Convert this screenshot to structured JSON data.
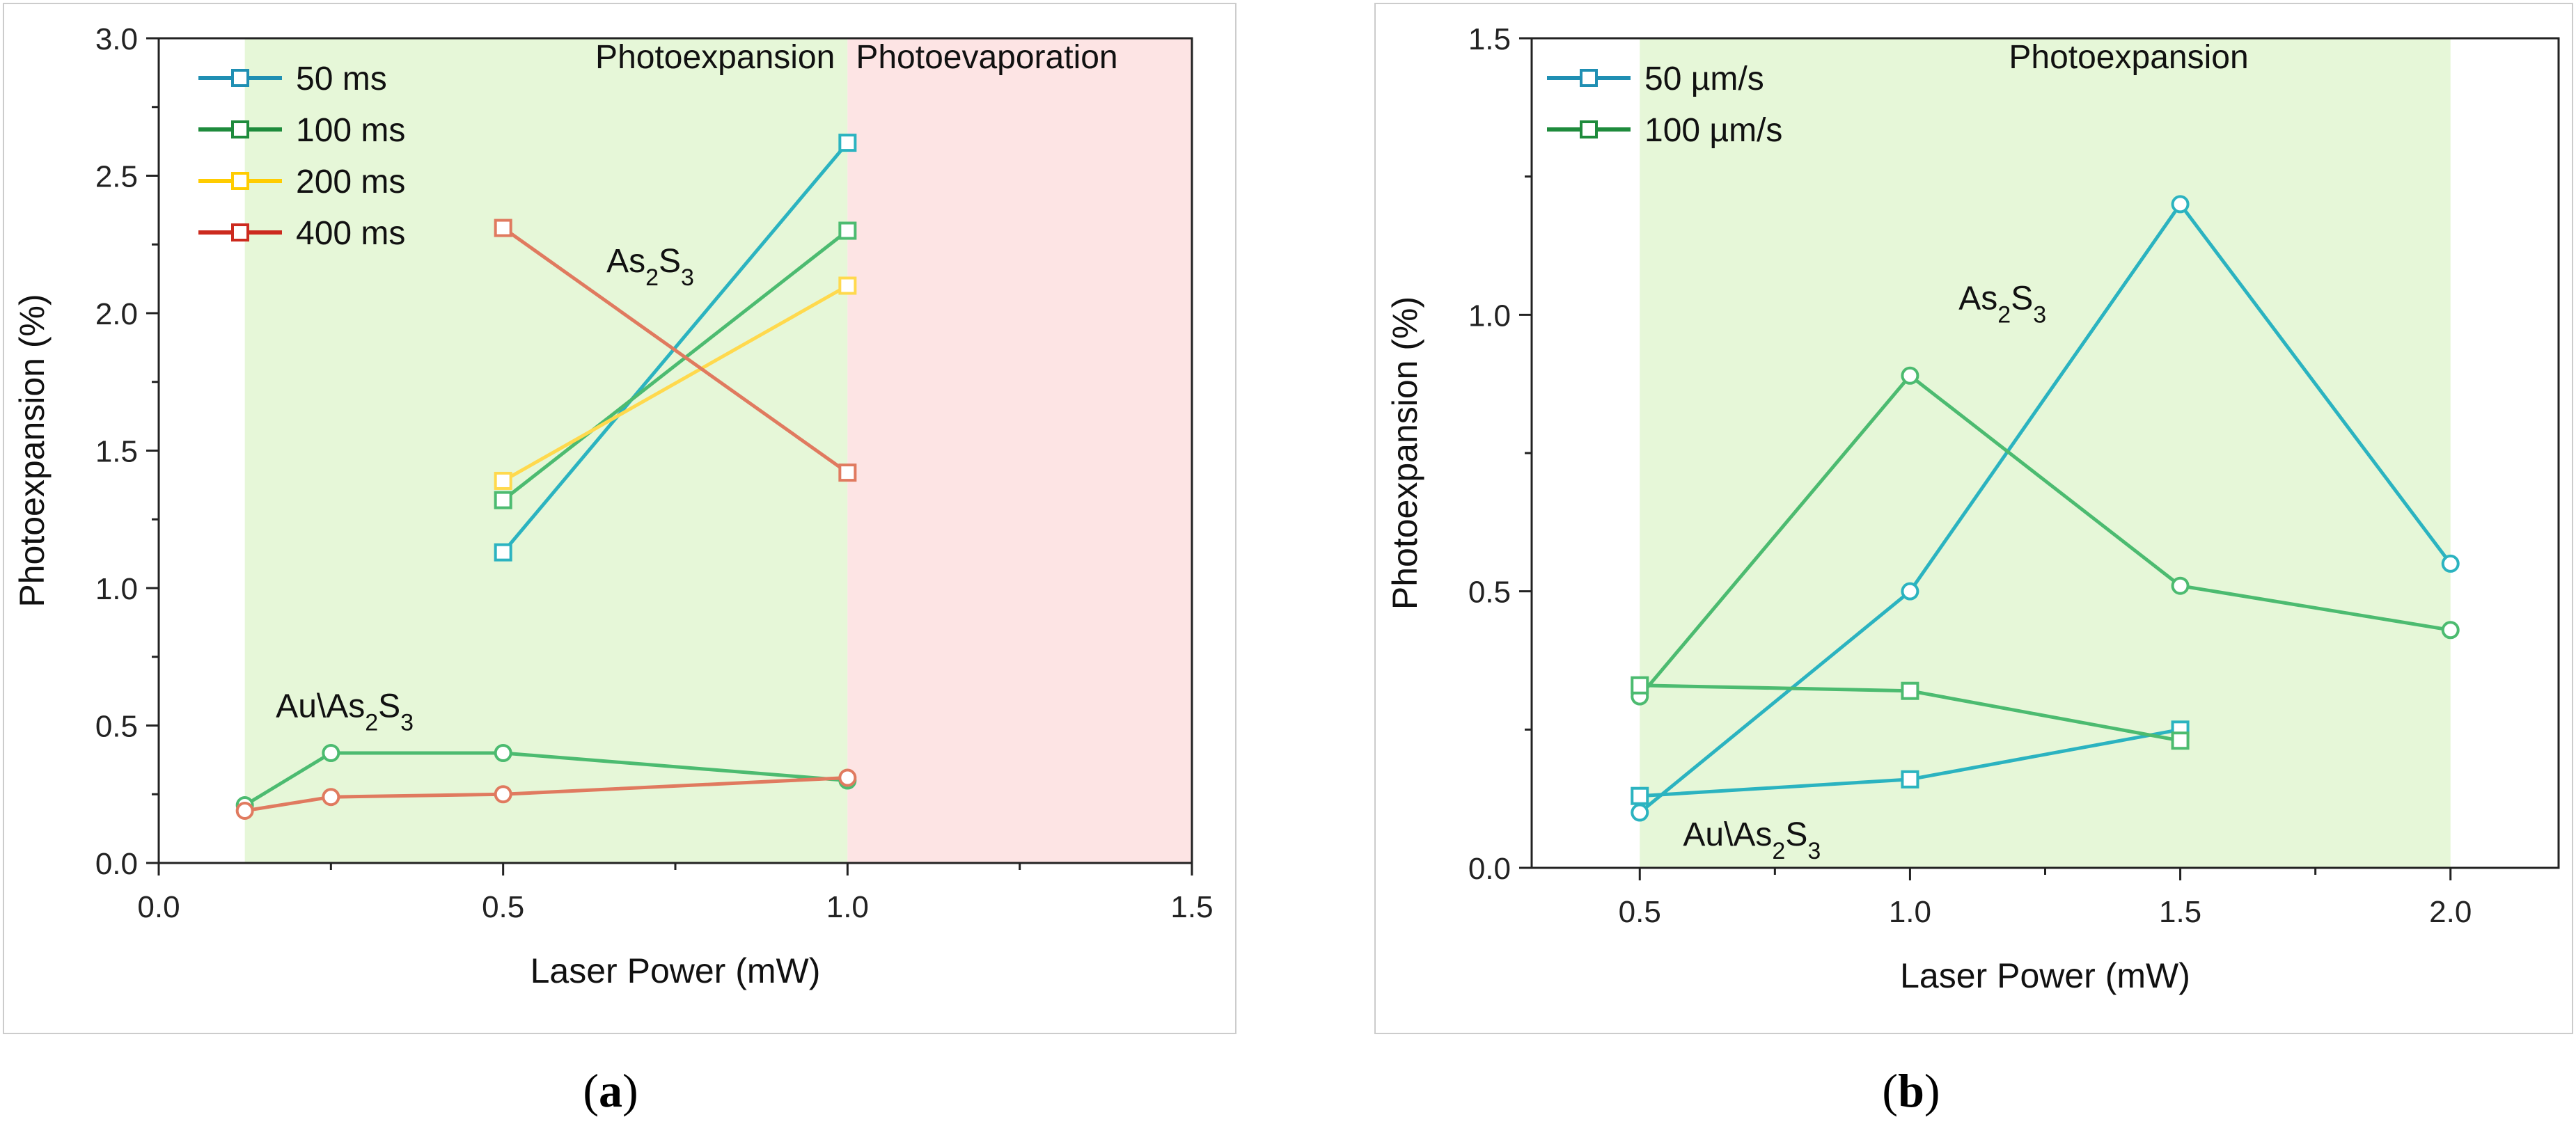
{
  "colors": {
    "teal": "#2bb3c0",
    "green": "#4cbb70",
    "yellow": "#ffd94d",
    "red": "#e07a5f",
    "legend_teal": "#1f8fb3",
    "legend_green": "#1e8b3c",
    "legend_yellow": "#ffcc00",
    "legend_red": "#cc2a1e",
    "region_green": "#e6f7d8",
    "region_red": "#fde4e4"
  },
  "chart_data": [
    {
      "type": "line",
      "panel_label": "a",
      "xlabel": "Laser Power (mW)",
      "ylabel": "Photoexpansion (%)",
      "xlim": [
        0,
        1.5
      ],
      "ylim": [
        0,
        3.0
      ],
      "xticks": [
        0.0,
        0.5,
        1.0,
        1.5
      ],
      "xtick_labels": [
        "0.0",
        "0.5",
        "1.0",
        "1.5"
      ],
      "yticks": [
        0.0,
        0.5,
        1.0,
        1.5,
        2.0,
        2.5,
        3.0
      ],
      "ytick_labels": [
        "0.0",
        "0.5",
        "1.0",
        "1.5",
        "2.0",
        "2.5",
        "3.0"
      ],
      "regions": [
        {
          "label": "Photoexpansion",
          "x": [
            0.125,
            1.0
          ],
          "fill": "region_green"
        },
        {
          "label": "Photoevaporation",
          "x": [
            1.0,
            1.5
          ],
          "fill": "region_red"
        }
      ],
      "annotations": [
        {
          "prefix": "As",
          "sub1": "2",
          "mid": "S",
          "sub2": "3",
          "x": 0.65,
          "y": 2.15
        },
        {
          "prefix": "Au\\As",
          "sub1": "2",
          "mid": "S",
          "sub2": "3",
          "x": 0.17,
          "y": 0.53
        }
      ],
      "legend": [
        {
          "label": "50 ms",
          "color": "legend_teal"
        },
        {
          "label": "100 ms",
          "color": "legend_green"
        },
        {
          "label": "200 ms",
          "color": "legend_yellow"
        },
        {
          "label": "400 ms",
          "color": "legend_red"
        }
      ],
      "series": [
        {
          "name": "50 ms (As2S3)",
          "color": "teal",
          "marker": "square",
          "x": [
            0.5,
            1.0
          ],
          "y": [
            1.13,
            2.62
          ]
        },
        {
          "name": "100 ms (As2S3)",
          "color": "green",
          "marker": "square",
          "x": [
            0.5,
            1.0
          ],
          "y": [
            1.32,
            2.3
          ]
        },
        {
          "name": "200 ms (As2S3)",
          "color": "yellow",
          "marker": "square",
          "x": [
            0.5,
            1.0
          ],
          "y": [
            1.39,
            2.1
          ]
        },
        {
          "name": "400 ms (As2S3)",
          "color": "red",
          "marker": "square",
          "x": [
            0.5,
            1.0
          ],
          "y": [
            2.31,
            1.42
          ]
        },
        {
          "name": "100 ms (Au\\As2S3)",
          "color": "green",
          "marker": "circle",
          "x": [
            0.125,
            0.25,
            0.5,
            1.0
          ],
          "y": [
            0.21,
            0.4,
            0.4,
            0.3
          ]
        },
        {
          "name": "400 ms (Au\\As2S3)",
          "color": "red",
          "marker": "circle",
          "x": [
            0.125,
            0.25,
            0.5,
            1.0
          ],
          "y": [
            0.19,
            0.24,
            0.25,
            0.31
          ]
        }
      ]
    },
    {
      "type": "line",
      "panel_label": "b",
      "xlabel": "Laser Power (mW)",
      "ylabel": "Photoexpansion (%)",
      "xlim": [
        0.3,
        2.2
      ],
      "ylim": [
        0,
        1.5
      ],
      "xticks": [
        0.5,
        1.0,
        1.5,
        2.0
      ],
      "xtick_labels": [
        "0.5",
        "1.0",
        "1.5",
        "2.0"
      ],
      "yticks": [
        0.0,
        0.5,
        1.0,
        1.5
      ],
      "ytick_labels": [
        "0.0",
        "0.5",
        "1.0",
        "1.5"
      ],
      "regions": [
        {
          "label": "Photoexpansion",
          "x": [
            0.5,
            2.0
          ],
          "fill": "region_green"
        }
      ],
      "annotations": [
        {
          "prefix": "As",
          "sub1": "2",
          "mid": "S",
          "sub2": "3",
          "x": 1.09,
          "y": 1.01
        },
        {
          "prefix": "Au\\As",
          "sub1": "2",
          "mid": "S",
          "sub2": "3",
          "x": 0.58,
          "y": 0.04
        }
      ],
      "legend": [
        {
          "label": "50 µm/s",
          "color": "legend_teal"
        },
        {
          "label": "100 µm/s",
          "color": "legend_green"
        }
      ],
      "series": [
        {
          "name": "50 µm/s (As2S3)",
          "color": "teal",
          "marker": "circle",
          "x": [
            0.5,
            1.0,
            1.5,
            2.0
          ],
          "y": [
            0.1,
            0.5,
            1.2,
            0.55
          ]
        },
        {
          "name": "100 µm/s (As2S3)",
          "color": "green",
          "marker": "circle",
          "x": [
            0.5,
            1.0,
            1.5,
            2.0
          ],
          "y": [
            0.31,
            0.89,
            0.51,
            0.43
          ]
        },
        {
          "name": "50 µm/s (Au\\As2S3)",
          "color": "teal",
          "marker": "square",
          "x": [
            0.5,
            1.0,
            1.5
          ],
          "y": [
            0.13,
            0.16,
            0.25
          ]
        },
        {
          "name": "100 µm/s (Au\\As2S3)",
          "color": "green",
          "marker": "square",
          "x": [
            0.5,
            1.0,
            1.5
          ],
          "y": [
            0.33,
            0.32,
            0.23
          ]
        }
      ]
    }
  ]
}
